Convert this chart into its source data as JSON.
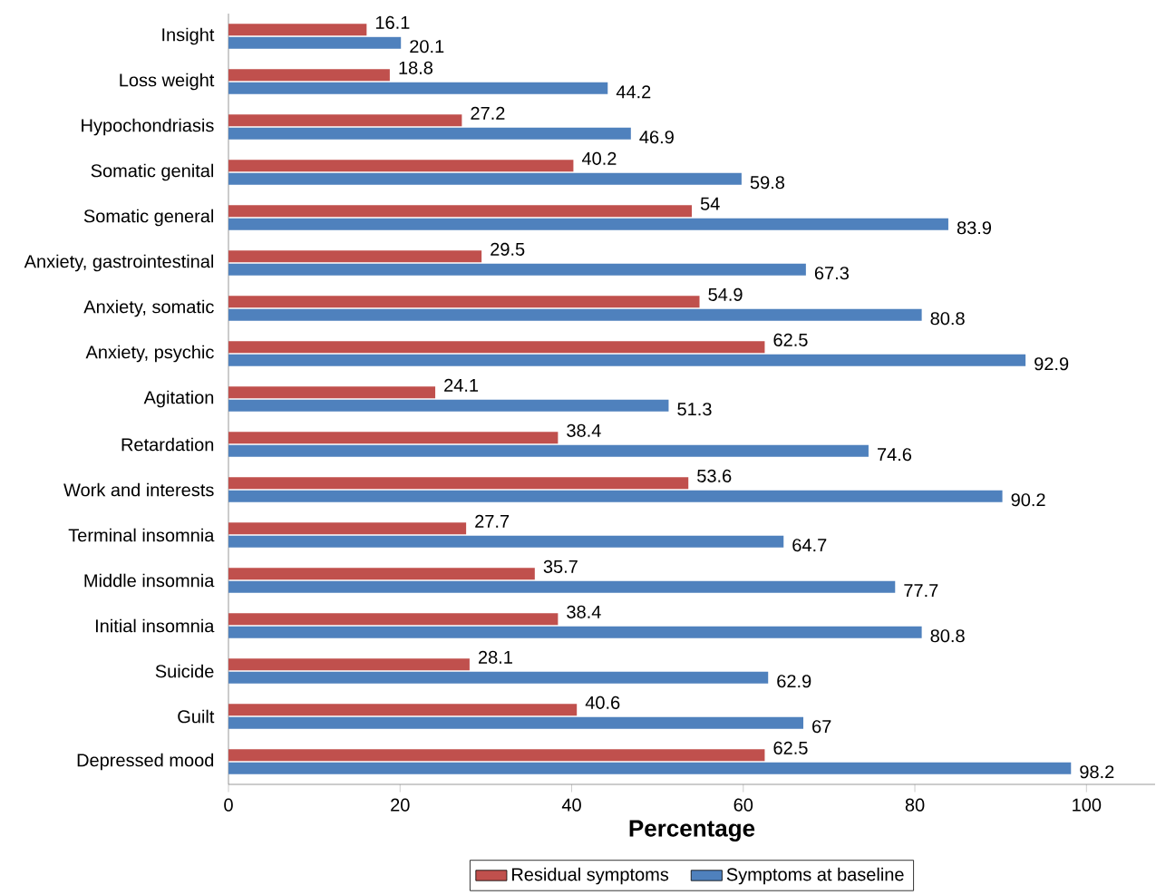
{
  "chart_data": {
    "type": "bar",
    "orientation": "horizontal",
    "xlabel": "Percentage",
    "categories": [
      "Insight",
      "Loss weight",
      "Hypochondriasis",
      "Somatic genital",
      "Somatic general",
      "Anxiety, gastrointestinal",
      "Anxiety, somatic",
      "Anxiety, psychic",
      "Agitation",
      "Retardation",
      "Work and interests",
      "Terminal insomnia",
      "Middle insomnia",
      "Initial insomnia",
      "Suicide",
      "Guilt",
      "Depressed mood"
    ],
    "series": [
      {
        "name": "Residual symptoms",
        "color": "#c0504d",
        "values": [
          16.1,
          18.8,
          27.2,
          40.2,
          54,
          29.5,
          54.9,
          62.5,
          24.1,
          38.4,
          53.6,
          27.7,
          35.7,
          38.4,
          28.1,
          40.6,
          62.5
        ]
      },
      {
        "name": "Symptoms at baseline",
        "color": "#4f81bd",
        "values": [
          20.1,
          44.2,
          46.9,
          59.8,
          83.9,
          67.3,
          80.8,
          92.9,
          51.3,
          74.6,
          90.2,
          64.7,
          77.7,
          80.8,
          62.9,
          67,
          98.2
        ]
      }
    ],
    "xlim": [
      0,
      108
    ],
    "xticks": [
      0,
      20,
      40,
      60,
      80,
      100
    ],
    "data_labels": true,
    "legend": "bottom",
    "grid": false
  }
}
